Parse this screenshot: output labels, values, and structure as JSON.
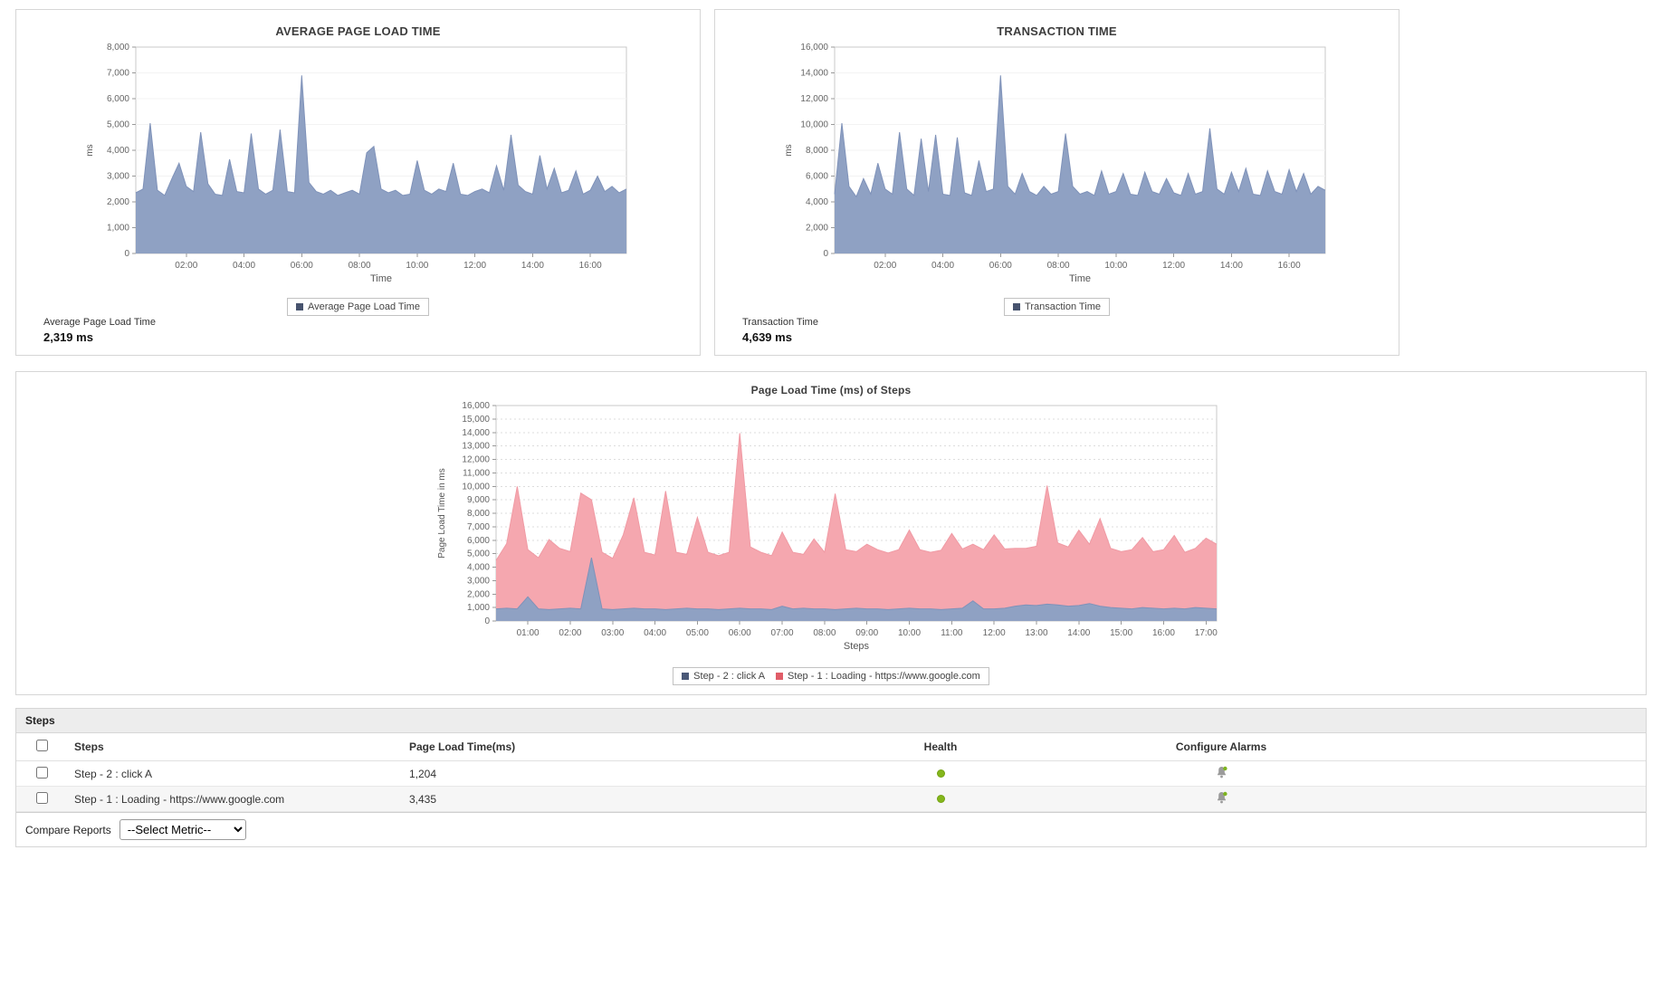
{
  "chart_data": [
    {
      "id": "average-page-load-time",
      "type": "area",
      "title": "AVERAGE PAGE LOAD TIME",
      "xlabel": "Time",
      "ylabel": "ms",
      "ylim": [
        0,
        8000
      ],
      "ytick_step": 1000,
      "xlim": [
        0.25,
        17.25
      ],
      "xticks": [
        2,
        4,
        6,
        8,
        10,
        12,
        14,
        16
      ],
      "xtick_labels": [
        "02:00",
        "04:00",
        "06:00",
        "08:00",
        "10:00",
        "12:00",
        "14:00",
        "16:00"
      ],
      "x_start": 0.25,
      "x_step": 0.25,
      "stacked": false,
      "grid": "light",
      "legend_position": "bottom",
      "series": [
        {
          "name": "Average Page Load Time",
          "fill": "#8fa1c3",
          "stroke": "#7f92b9",
          "marker": "#47536e",
          "values": [
            2350,
            2500,
            5050,
            2450,
            2250,
            2900,
            3500,
            2600,
            2400,
            4700,
            2700,
            2300,
            2250,
            3650,
            2400,
            2350,
            4650,
            2500,
            2300,
            2450,
            4800,
            2400,
            2350,
            6900,
            2750,
            2400,
            2300,
            2450,
            2250,
            2350,
            2450,
            2300,
            3900,
            4150,
            2500,
            2350,
            2450,
            2250,
            2300,
            3600,
            2450,
            2300,
            2500,
            2400,
            3500,
            2300,
            2250,
            2400,
            2500,
            2350,
            3400,
            2450,
            4600,
            2650,
            2400,
            2300,
            3800,
            2500,
            3300,
            2350,
            2450,
            3200,
            2300,
            2450,
            3000,
            2400,
            2600,
            2350,
            2500
          ]
        }
      ],
      "summary_label": "Average Page Load Time",
      "summary_value": "2,319 ms"
    },
    {
      "id": "transaction-time",
      "type": "area",
      "title": "TRANSACTION TIME",
      "xlabel": "Time",
      "ylabel": "ms",
      "ylim": [
        0,
        16000
      ],
      "ytick_step": 2000,
      "xlim": [
        0.25,
        17.25
      ],
      "xticks": [
        2,
        4,
        6,
        8,
        10,
        12,
        14,
        16
      ],
      "xtick_labels": [
        "02:00",
        "04:00",
        "06:00",
        "08:00",
        "10:00",
        "12:00",
        "14:00",
        "16:00"
      ],
      "x_start": 0.25,
      "x_step": 0.25,
      "stacked": false,
      "grid": "light",
      "legend_position": "bottom",
      "series": [
        {
          "name": "Transaction Time",
          "fill": "#8fa1c3",
          "stroke": "#7f92b9",
          "marker": "#47536e",
          "values": [
            4600,
            10100,
            5200,
            4400,
            5800,
            4600,
            7000,
            5000,
            4600,
            9400,
            5000,
            4500,
            8900,
            4800,
            9200,
            4600,
            4500,
            9000,
            4700,
            4500,
            7200,
            4800,
            5000,
            13800,
            5200,
            4600,
            6200,
            4800,
            4500,
            5200,
            4600,
            4800,
            9300,
            5200,
            4600,
            4800,
            4500,
            6400,
            4600,
            4800,
            6200,
            4600,
            4500,
            6300,
            4800,
            4600,
            5800,
            4700,
            4500,
            6200,
            4600,
            4800,
            9700,
            5000,
            4600,
            6300,
            4800,
            6600,
            4600,
            4500,
            6400,
            4800,
            4600,
            6500,
            4800,
            6200,
            4600,
            5200,
            4900
          ]
        }
      ],
      "summary_label": "Transaction Time",
      "summary_value": "4,639 ms"
    },
    {
      "id": "page-load-time-of-steps",
      "type": "area",
      "title": "Page Load Time (ms) of Steps",
      "xlabel": "Steps",
      "ylabel": "Page Load Time in ms",
      "ylim": [
        0,
        16000
      ],
      "ytick_step": 1000,
      "xlim": [
        0.25,
        17.25
      ],
      "xticks": [
        1,
        2,
        3,
        4,
        5,
        6,
        7,
        8,
        9,
        10,
        11,
        12,
        13,
        14,
        15,
        16,
        17
      ],
      "xtick_labels": [
        "01:00",
        "02:00",
        "03:00",
        "04:00",
        "05:00",
        "06:00",
        "07:00",
        "08:00",
        "09:00",
        "10:00",
        "11:00",
        "12:00",
        "13:00",
        "14:00",
        "15:00",
        "16:00",
        "17:00"
      ],
      "x_start": 0.25,
      "x_step": 0.25,
      "stacked": true,
      "grid": "dashed",
      "legend_position": "bottom",
      "series": [
        {
          "name": "Step - 2 : click A",
          "fill": "#8fa1c3",
          "stroke": "#7f92b9",
          "marker": "#4a5877",
          "values": [
            900,
            950,
            900,
            1800,
            900,
            850,
            900,
            950,
            900,
            4700,
            900,
            850,
            900,
            950,
            900,
            900,
            850,
            900,
            950,
            900,
            900,
            850,
            900,
            950,
            900,
            900,
            850,
            1100,
            900,
            950,
            900,
            900,
            850,
            900,
            950,
            900,
            900,
            850,
            900,
            950,
            900,
            900,
            850,
            900,
            950,
            1500,
            900,
            900,
            950,
            1100,
            1200,
            1150,
            1250,
            1200,
            1100,
            1150,
            1300,
            1100,
            1000,
            950,
            900,
            1000,
            950,
            900,
            950,
            900,
            1000,
            950,
            900
          ]
        },
        {
          "name": "Step - 1 : Loading - https://www.google.com",
          "fill": "#f5a7af",
          "stroke": "#f09aa4",
          "marker": "#e05d68",
          "values": [
            3600,
            4800,
            9100,
            3500,
            3800,
            5200,
            4500,
            4200,
            8600,
            4300,
            4200,
            3800,
            5500,
            8200,
            4200,
            4000,
            8800,
            4200,
            4000,
            6800,
            4200,
            4000,
            4200,
            13000,
            4600,
            4200,
            4000,
            5500,
            4200,
            4000,
            5200,
            4200,
            8600,
            4400,
            4200,
            4800,
            4400,
            4200,
            4400,
            5800,
            4400,
            4200,
            4400,
            5600,
            4400,
            4200,
            4400,
            5500,
            4400,
            4300,
            4200,
            4400,
            8800,
            4600,
            4400,
            5600,
            4400,
            6500,
            4400,
            4200,
            4400,
            5200,
            4200,
            4400,
            5400,
            4200,
            4400,
            5200,
            4800
          ]
        }
      ]
    }
  ],
  "steps_table": {
    "panel_title": "Steps",
    "columns": [
      "Steps",
      "Page Load Time(ms)",
      "Health",
      "Configure Alarms"
    ],
    "rows": [
      {
        "step": "Step - 2 : click A",
        "page_load_time_ms": "1,204",
        "health": "green"
      },
      {
        "step": "Step - 1 : Loading - https://www.google.com",
        "page_load_time_ms": "3,435",
        "health": "green"
      }
    ]
  },
  "compare": {
    "label": "Compare Reports",
    "select_value": "--Select Metric--"
  },
  "colors": {
    "area_blue": "#8fa1c3",
    "area_blue_stroke": "#7f92b9",
    "area_pink": "#f5a7af",
    "area_pink_stroke": "#f09aa4",
    "health_green": "#84b61c"
  }
}
